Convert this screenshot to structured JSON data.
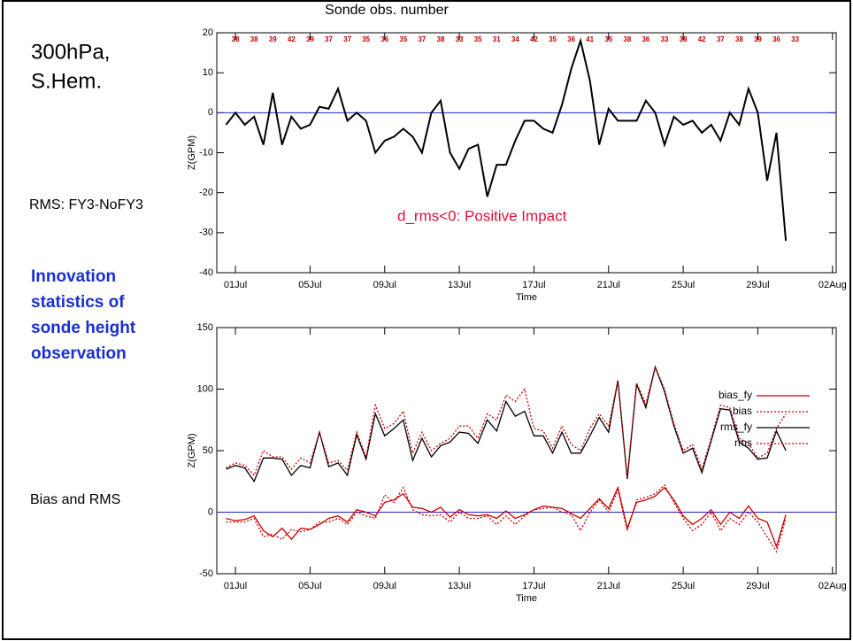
{
  "texts": {
    "region": [
      "300hPa,",
      "S.Hem."
    ],
    "rms_note": "RMS: FY3-NoFY3",
    "innovation": [
      "Innovation",
      "statistics of",
      "sonde height",
      "observation"
    ],
    "bias_note": "Bias and RMS"
  },
  "chart_data": [
    {
      "type": "line",
      "title": "Sonde obs. number",
      "annotation": "d_rms<0:  Positive Impact",
      "ylabel": "Z(GPM)",
      "xlabel": "Time",
      "obs_numbers": [
        38,
        38,
        39,
        42,
        39,
        37,
        37,
        35,
        36,
        35,
        37,
        38,
        33,
        35,
        31,
        34,
        42,
        35,
        36,
        41,
        35,
        38,
        36,
        33,
        38,
        42,
        37,
        38,
        39,
        36,
        33
      ],
      "x": [
        0.5,
        1,
        1.5,
        2,
        2.5,
        3,
        3.5,
        4,
        4.5,
        5,
        5.5,
        6,
        6.5,
        7,
        7.5,
        8,
        8.5,
        9,
        9.5,
        10,
        10.5,
        11,
        11.5,
        12,
        12.5,
        13,
        13.5,
        14,
        14.5,
        15,
        15.5,
        16,
        16.5,
        17,
        17.5,
        18,
        18.5,
        19,
        19.5,
        20,
        20.5,
        21,
        21.5,
        22,
        22.5,
        23,
        23.5,
        24,
        24.5,
        25,
        25.5,
        26,
        26.5,
        27,
        27.5,
        28,
        28.5,
        29,
        29.5,
        30,
        30.5
      ],
      "values": [
        -3,
        0,
        -3,
        -1,
        -8,
        5,
        -8,
        -1,
        -4,
        -3,
        1.5,
        1,
        6,
        -2,
        0,
        -2,
        -10,
        -7,
        -6,
        -4,
        -6,
        -10,
        0,
        3,
        -10,
        -14,
        -9,
        -8,
        -21,
        -13,
        -13,
        -7,
        -2,
        -2,
        -4,
        -5,
        2,
        11,
        18,
        8,
        -8,
        1,
        -2,
        -2,
        -2,
        3,
        0,
        -8,
        -1,
        -3,
        -2,
        -5,
        -3,
        -7,
        0,
        -3,
        6,
        0,
        -17,
        -5,
        -32
      ],
      "color": "#000000",
      "hline": 0,
      "hline_color": "#1f1fbf",
      "xlim": [
        0,
        33.2
      ],
      "ylim": [
        -40,
        20
      ],
      "xticks": [
        {
          "value": 1,
          "label": "01Jul"
        },
        {
          "value": 5,
          "label": "05Jul"
        },
        {
          "value": 9,
          "label": "09Jul"
        },
        {
          "value": 13,
          "label": "13Jul"
        },
        {
          "value": 17,
          "label": "17Jul"
        },
        {
          "value": 21,
          "label": "21Jul"
        },
        {
          "value": 25,
          "label": "25Jul"
        },
        {
          "value": 29,
          "label": "29Jul"
        },
        {
          "value": 33,
          "label": "02Aug"
        }
      ],
      "yticks": [
        -40,
        -30,
        -20,
        -10,
        0,
        10,
        20
      ]
    },
    {
      "type": "line",
      "ylabel": "Z(GPM)",
      "xlabel": "Time",
      "legend": "right",
      "x": [
        0.5,
        1,
        1.5,
        2,
        2.5,
        3,
        3.5,
        4,
        4.5,
        5,
        5.5,
        6,
        6.5,
        7,
        7.5,
        8,
        8.5,
        9,
        9.5,
        10,
        10.5,
        11,
        11.5,
        12,
        12.5,
        13,
        13.5,
        14,
        14.5,
        15,
        15.5,
        16,
        16.5,
        17,
        17.5,
        18,
        18.5,
        19,
        19.5,
        20,
        20.5,
        21,
        21.5,
        22,
        22.5,
        23,
        23.5,
        24,
        24.5,
        25,
        25.5,
        26,
        26.5,
        27,
        27.5,
        28,
        28.5,
        29,
        29.5,
        30,
        30.5
      ],
      "series": [
        {
          "name": "bias_fy",
          "color": "#cc0000",
          "dash": "solid",
          "values": [
            -5,
            -7,
            -6,
            -3,
            -15,
            -20,
            -13,
            -22,
            -13,
            -14,
            -10,
            -5,
            -3,
            -8,
            2,
            0,
            -3,
            8,
            10,
            15,
            4,
            3,
            0,
            4,
            -4,
            2,
            -2,
            -3,
            -2,
            -5,
            1,
            -5,
            -2,
            2,
            5,
            4,
            3,
            -1,
            -5,
            3,
            11,
            3,
            20,
            -13,
            8,
            10,
            13,
            20,
            10,
            -3,
            -10,
            -5,
            2,
            -10,
            0,
            -5,
            5,
            -5,
            -8,
            -28,
            -2
          ]
        },
        {
          "name": "bias",
          "color": "#cc0000",
          "dash": "dotted",
          "values": [
            -8,
            -8,
            -8,
            -5,
            -20,
            -18,
            -22,
            -14,
            -16,
            -14,
            -8,
            -8,
            -5,
            -10,
            0,
            -3,
            -5,
            14,
            8,
            20,
            2,
            -2,
            -3,
            -2,
            -8,
            0,
            -5,
            -5,
            -3,
            -10,
            -3,
            -10,
            -3,
            2,
            3,
            4,
            0,
            -2,
            -15,
            0,
            10,
            0,
            18,
            -15,
            10,
            12,
            15,
            22,
            8,
            -5,
            -15,
            -10,
            0,
            -15,
            -5,
            -10,
            0,
            -8,
            -20,
            -32,
            -5
          ]
        },
        {
          "name": "rms_fy",
          "color": "#000000",
          "dash": "solid",
          "values": [
            35,
            38,
            36,
            25,
            44,
            44,
            43,
            30,
            38,
            36,
            65,
            37,
            40,
            30,
            63,
            43,
            80,
            62,
            68,
            75,
            42,
            60,
            45,
            54,
            57,
            65,
            64,
            56,
            75,
            66,
            90,
            78,
            82,
            62,
            62,
            48,
            65,
            48,
            48,
            62,
            77,
            65,
            107,
            27,
            104,
            85,
            118,
            98,
            70,
            48,
            52,
            32,
            58,
            84,
            83,
            57,
            52,
            43,
            44,
            66,
            50
          ]
        },
        {
          "name": "rms",
          "color": "#cc0000",
          "dash": "dotted",
          "values": [
            36,
            40,
            38,
            30,
            50,
            45,
            45,
            35,
            44,
            40,
            65,
            40,
            42,
            34,
            65,
            45,
            87,
            68,
            72,
            82,
            48,
            65,
            50,
            56,
            60,
            70,
            70,
            60,
            80,
            75,
            95,
            90,
            100,
            68,
            66,
            52,
            70,
            55,
            50,
            68,
            80,
            70,
            107,
            28,
            105,
            88,
            118,
            100,
            72,
            50,
            55,
            35,
            60,
            87,
            85,
            60,
            56,
            44,
            48,
            68,
            80
          ]
        }
      ],
      "hline": 0,
      "hline_color": "#1f1fbf",
      "xlim": [
        0,
        33.2
      ],
      "ylim": [
        -50,
        150
      ],
      "xticks": [
        {
          "value": 1,
          "label": "01Jul"
        },
        {
          "value": 5,
          "label": "05Jul"
        },
        {
          "value": 9,
          "label": "09Jul"
        },
        {
          "value": 13,
          "label": "13Jul"
        },
        {
          "value": 17,
          "label": "17Jul"
        },
        {
          "value": 21,
          "label": "21Jul"
        },
        {
          "value": 25,
          "label": "25Jul"
        },
        {
          "value": 29,
          "label": "29Jul"
        },
        {
          "value": 33,
          "label": "02Aug"
        }
      ],
      "yticks": [
        -50,
        0,
        50,
        100,
        150
      ]
    }
  ]
}
